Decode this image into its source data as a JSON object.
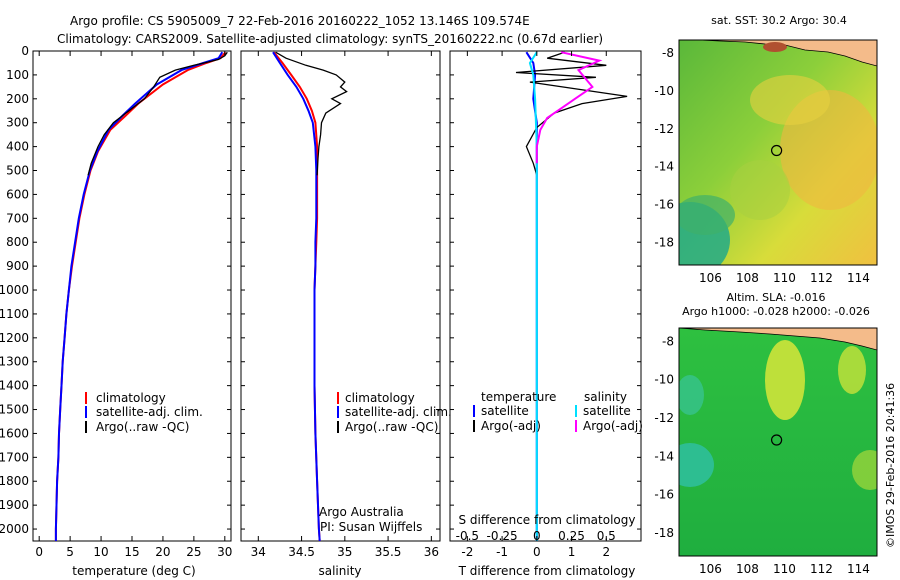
{
  "header": {
    "line1": "Argo profile: CS 5905009_7 22-Feb-2016 20160222_1052 13.146S 109.574E",
    "line2": "Climatology: CARS2009. Satellite-adjusted climatology: synTS_20160222.nc (0.67d earlier)"
  },
  "colors": {
    "climatology": "#ff0000",
    "satellite": "#0000ff",
    "argo": "#000000",
    "sal_satellite": "#00e0ff",
    "sal_argo": "#ff00ff"
  },
  "chart_data": [
    {
      "type": "line",
      "id": "temperature",
      "xlabel": "temperature (deg C)",
      "ylabel": "",
      "xlim": [
        -1,
        31
      ],
      "ylim": [
        2050,
        0
      ],
      "xticks": [
        0,
        5,
        10,
        15,
        20,
        25,
        30
      ],
      "yticks": [
        0,
        100,
        200,
        300,
        400,
        500,
        600,
        700,
        800,
        900,
        1000,
        1100,
        1200,
        1300,
        1400,
        1500,
        1600,
        1700,
        1800,
        1900,
        2000
      ],
      "legend": [
        "climatology",
        "satellite-adj. clim.",
        "Argo(..raw -QC)"
      ],
      "series": [
        {
          "name": "climatology",
          "color": "#ff0000",
          "points": [
            [
              30.1,
              5
            ],
            [
              29.3,
              30
            ],
            [
              27,
              50
            ],
            [
              24,
              80
            ],
            [
              20,
              140
            ],
            [
              16,
              220
            ],
            [
              14,
              270
            ],
            [
              11.5,
              330
            ],
            [
              9.5,
              420
            ],
            [
              8.3,
              500
            ],
            [
              7.3,
              600
            ],
            [
              6.5,
              700
            ],
            [
              5.9,
              800
            ],
            [
              5.3,
              900
            ],
            [
              4.8,
              1000
            ],
            [
              4.4,
              1100
            ],
            [
              4.1,
              1200
            ],
            [
              3.8,
              1300
            ],
            [
              3.6,
              1400
            ],
            [
              3.4,
              1500
            ],
            [
              3.2,
              1600
            ],
            [
              3.1,
              1700
            ],
            [
              2.9,
              1800
            ],
            [
              2.8,
              1900
            ],
            [
              2.7,
              2000
            ],
            [
              2.7,
              2050
            ]
          ]
        },
        {
          "name": "satellite-adj. clim.",
          "color": "#0000ff",
          "points": [
            [
              29.6,
              5
            ],
            [
              29.0,
              30
            ],
            [
              26.5,
              50
            ],
            [
              23,
              80
            ],
            [
              19,
              140
            ],
            [
              15.5,
              220
            ],
            [
              13.5,
              270
            ],
            [
              11.2,
              330
            ],
            [
              9.4,
              420
            ],
            [
              8.2,
              500
            ],
            [
              7.2,
              600
            ],
            [
              6.4,
              700
            ],
            [
              5.8,
              800
            ],
            [
              5.2,
              900
            ],
            [
              4.8,
              1000
            ],
            [
              4.4,
              1100
            ],
            [
              4.1,
              1200
            ],
            [
              3.8,
              1300
            ],
            [
              3.6,
              1400
            ],
            [
              3.4,
              1500
            ],
            [
              3.2,
              1600
            ],
            [
              3.1,
              1700
            ],
            [
              2.9,
              1800
            ],
            [
              2.8,
              1900
            ],
            [
              2.7,
              2000
            ],
            [
              2.7,
              2050
            ]
          ]
        },
        {
          "name": "Argo(..raw -QC)",
          "color": "#000000",
          "points": [
            [
              30.4,
              5
            ],
            [
              30.0,
              20
            ],
            [
              29.0,
              35
            ],
            [
              27.5,
              45
            ],
            [
              25,
              60
            ],
            [
              22,
              80
            ],
            [
              19.5,
              110
            ],
            [
              18.5,
              150
            ],
            [
              17,
              200
            ],
            [
              14.5,
              250
            ],
            [
              12,
              300
            ],
            [
              10.5,
              350
            ],
            [
              9.5,
              400
            ],
            [
              8.4,
              470
            ],
            [
              7.9,
              520
            ]
          ]
        }
      ]
    },
    {
      "type": "line",
      "id": "salinity",
      "xlabel": "salinity",
      "xlim": [
        33.8,
        36.1
      ],
      "ylim": [
        2050,
        0
      ],
      "xticks": [
        34,
        34.5,
        35,
        35.5,
        36
      ],
      "legend": [
        "climatology",
        "satellite-adj. clim.",
        "Argo(..raw -QC)"
      ],
      "annotation": [
        "Argo Australia",
        "PI: Susan Wijffels"
      ],
      "series": [
        {
          "name": "climatology",
          "color": "#ff0000",
          "points": [
            [
              34.18,
              5
            ],
            [
              34.28,
              50
            ],
            [
              34.38,
              100
            ],
            [
              34.48,
              150
            ],
            [
              34.56,
              200
            ],
            [
              34.62,
              250
            ],
            [
              34.66,
              300
            ],
            [
              34.68,
              400
            ],
            [
              34.68,
              500
            ],
            [
              34.68,
              600
            ],
            [
              34.68,
              700
            ],
            [
              34.67,
              800
            ],
            [
              34.66,
              900
            ],
            [
              34.65,
              1000
            ],
            [
              34.65,
              1200
            ],
            [
              34.65,
              1400
            ],
            [
              34.66,
              1600
            ],
            [
              34.68,
              1800
            ],
            [
              34.7,
              2000
            ],
            [
              34.71,
              2050
            ]
          ]
        },
        {
          "name": "satellite-adj. clim.",
          "color": "#0000ff",
          "points": [
            [
              34.17,
              5
            ],
            [
              34.25,
              50
            ],
            [
              34.34,
              100
            ],
            [
              34.44,
              150
            ],
            [
              34.52,
              200
            ],
            [
              34.58,
              250
            ],
            [
              34.63,
              300
            ],
            [
              34.66,
              400
            ],
            [
              34.67,
              500
            ],
            [
              34.67,
              600
            ],
            [
              34.67,
              700
            ],
            [
              34.66,
              800
            ],
            [
              34.66,
              900
            ],
            [
              34.65,
              1000
            ],
            [
              34.65,
              1200
            ],
            [
              34.65,
              1400
            ],
            [
              34.66,
              1600
            ],
            [
              34.68,
              1800
            ],
            [
              34.7,
              2000
            ],
            [
              34.71,
              2050
            ]
          ]
        },
        {
          "name": "Argo(..raw -QC)",
          "color": "#000000",
          "points": [
            [
              34.2,
              5
            ],
            [
              34.32,
              30
            ],
            [
              34.55,
              60
            ],
            [
              34.75,
              80
            ],
            [
              34.9,
              100
            ],
            [
              35.0,
              130
            ],
            [
              34.95,
              150
            ],
            [
              35.02,
              170
            ],
            [
              34.85,
              200
            ],
            [
              34.95,
              220
            ],
            [
              34.78,
              260
            ],
            [
              34.73,
              300
            ],
            [
              34.72,
              350
            ],
            [
              34.7,
              400
            ],
            [
              34.69,
              450
            ],
            [
              34.68,
              520
            ]
          ]
        }
      ]
    },
    {
      "type": "line",
      "id": "differences",
      "xlabel": "T difference from climatology",
      "xlabel2": "S difference from climatology",
      "xlim": [
        -2.5,
        3.0
      ],
      "ylim": [
        2050,
        0
      ],
      "xticks": [
        -2,
        -1,
        0,
        1,
        2
      ],
      "xticks2": [
        -0.5,
        -0.25,
        0,
        0.25,
        0.5
      ],
      "legend_headers": [
        "temperature",
        "salinity"
      ],
      "legend": [
        "satellite",
        "Argo(-adj)",
        "satellite",
        "Argo(-adj)"
      ],
      "series": [
        {
          "name": "satellite",
          "color": "#0000ff",
          "points": [
            [
              -0.3,
              5
            ],
            [
              -0.1,
              50
            ],
            [
              -0.05,
              100
            ],
            [
              -0.1,
              200
            ],
            [
              0.0,
              300
            ],
            [
              0.0,
              500
            ],
            [
              0.0,
              1000
            ],
            [
              0.0,
              2050
            ]
          ]
        },
        {
          "name": "Argo(-adj)",
          "color": "#000000",
          "points": [
            [
              0.8,
              5
            ],
            [
              0.3,
              30
            ],
            [
              2.0,
              60
            ],
            [
              -0.6,
              90
            ],
            [
              1.7,
              110
            ],
            [
              -0.2,
              130
            ],
            [
              2.6,
              190
            ],
            [
              1.3,
              220
            ],
            [
              0.5,
              260
            ],
            [
              0.0,
              320
            ],
            [
              -0.3,
              400
            ],
            [
              -0.1,
              470
            ],
            [
              0.0,
              520
            ]
          ]
        },
        {
          "name": "satellite",
          "color": "#00e0ff",
          "points": [
            [
              0.0,
              5
            ],
            [
              -0.2,
              50
            ],
            [
              -0.1,
              100
            ],
            [
              -0.05,
              200
            ],
            [
              0.0,
              400
            ],
            [
              0.0,
              1000
            ],
            [
              0.0,
              2050
            ]
          ]
        },
        {
          "name": "Argo(-adj)",
          "color": "#ff00ff",
          "points": [
            [
              0.7,
              5
            ],
            [
              1.8,
              40
            ],
            [
              1.2,
              80
            ],
            [
              1.6,
              150
            ],
            [
              1.1,
              200
            ],
            [
              0.7,
              240
            ],
            [
              0.3,
              280
            ],
            [
              0.1,
              330
            ],
            [
              0.0,
              400
            ],
            [
              0.0,
              470
            ]
          ]
        }
      ]
    },
    {
      "type": "heatmap",
      "id": "sst_map",
      "title": "sat. SST: 30.2  Argo: 30.4",
      "xlim": [
        104.3,
        115
      ],
      "ylim": [
        -19.2,
        -7.3
      ],
      "xticks": [
        106,
        108,
        110,
        112,
        114
      ],
      "yticks": [
        -8,
        -10,
        -12,
        -14,
        -16,
        -18
      ],
      "marker": [
        109.574,
        -13.146
      ]
    },
    {
      "type": "heatmap",
      "id": "sla_map",
      "title": "Altim. SLA: -0.016",
      "subtitle": "Argo h1000: -0.028  h2000: -0.026",
      "xlim": [
        104.3,
        115
      ],
      "ylim": [
        -19.2,
        -7.3
      ],
      "xticks": [
        106,
        108,
        110,
        112,
        114
      ],
      "yticks": [
        -8,
        -10,
        -12,
        -14,
        -16,
        -18
      ],
      "marker": [
        109.574,
        -13.146
      ]
    }
  ],
  "footer": {
    "stamp": "©IMOS 29-Feb-2016 20:41:36"
  }
}
